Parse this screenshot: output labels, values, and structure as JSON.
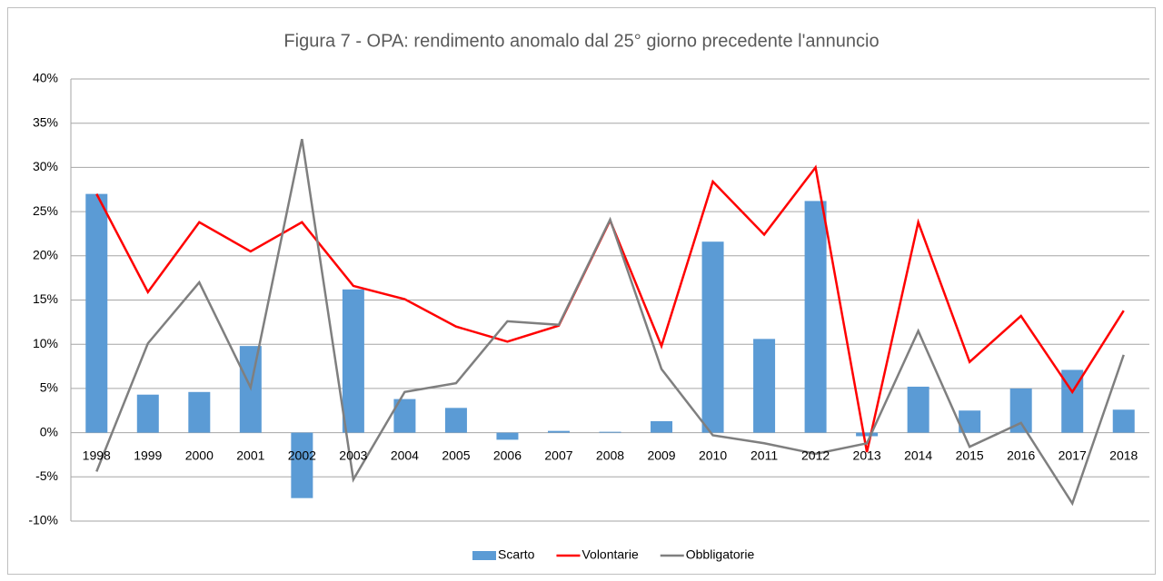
{
  "chart_data": {
    "type": "bar",
    "title": "Figura 7 - OPA: rendimento anomalo dal 25° giorno precedente l'annuncio",
    "categories": [
      "1998",
      "1999",
      "2000",
      "2001",
      "2002",
      "2003",
      "2004",
      "2005",
      "2006",
      "2007",
      "2008",
      "2009",
      "2010",
      "2011",
      "2012",
      "2013",
      "2014",
      "2015",
      "2016",
      "2017",
      "2018"
    ],
    "series": [
      {
        "name": "Scarto",
        "type": "bar",
        "color": "#5b9bd5",
        "values": [
          27.0,
          4.3,
          4.6,
          9.8,
          -7.4,
          16.2,
          3.8,
          2.8,
          -0.8,
          0.2,
          0.1,
          1.3,
          21.6,
          10.6,
          26.2,
          -0.4,
          5.2,
          2.5,
          5.0,
          7.1,
          2.6
        ]
      },
      {
        "name": "Volontarie",
        "type": "line",
        "color": "#ff0000",
        "values": [
          27.0,
          15.9,
          23.8,
          20.5,
          23.8,
          16.6,
          15.1,
          12.0,
          10.3,
          12.1,
          24.0,
          9.8,
          28.4,
          22.4,
          30.0,
          -2.2,
          23.8,
          8.0,
          13.2,
          4.6,
          13.8
        ]
      },
      {
        "name": "Obbligatorie",
        "type": "line",
        "color": "#7f7f7f",
        "values": [
          -4.4,
          10.1,
          17.0,
          5.1,
          33.2,
          -5.3,
          4.6,
          5.6,
          12.6,
          12.2,
          24.1,
          7.2,
          -0.3,
          -1.2,
          -2.4,
          -1.2,
          11.5,
          -1.6,
          1.1,
          -8.0,
          8.8
        ]
      }
    ],
    "ylim": [
      -10,
      40
    ],
    "yticks": [
      {
        "value": -10,
        "label": "-10%"
      },
      {
        "value": -5,
        "label": "-5%"
      },
      {
        "value": 0,
        "label": "0%"
      },
      {
        "value": 5,
        "label": "5%"
      },
      {
        "value": 10,
        "label": "10%"
      },
      {
        "value": 15,
        "label": "15%"
      },
      {
        "value": 20,
        "label": "20%"
      },
      {
        "value": 25,
        "label": "25%"
      },
      {
        "value": 30,
        "label": "30%"
      },
      {
        "value": 35,
        "label": "35%"
      },
      {
        "value": 40,
        "label": "40%"
      }
    ],
    "grid": true,
    "legend": "bottom"
  }
}
